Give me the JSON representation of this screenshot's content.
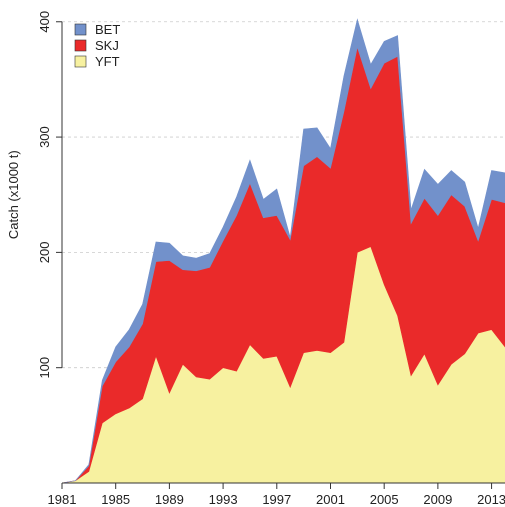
{
  "chart_data": {
    "type": "area",
    "stacked": true,
    "title": "",
    "xlabel": "",
    "ylabel": "Catch (x1000 t)",
    "xlim": [
      1981,
      2014
    ],
    "ylim": [
      0,
      400
    ],
    "x_ticks": [
      "1981",
      "1985",
      "1989",
      "1993",
      "1997",
      "2001",
      "2005",
      "2009",
      "2013"
    ],
    "y_ticks": [
      "100",
      "200",
      "300",
      "400"
    ],
    "grid": "horizontal dashed",
    "legend_position": "top-left",
    "x": [
      1981,
      1982,
      1983,
      1984,
      1985,
      1986,
      1987,
      1988,
      1989,
      1990,
      1991,
      1992,
      1993,
      1994,
      1995,
      1996,
      1997,
      1998,
      1999,
      2000,
      2001,
      2002,
      2003,
      2004,
      2005,
      2006,
      2007,
      2008,
      2009,
      2010,
      2011,
      2012,
      2013,
      2014
    ],
    "series": [
      {
        "name": "YFT",
        "color": "#f7f1a0",
        "values": [
          0,
          2,
          10,
          52,
          60,
          65,
          73,
          110,
          78,
          103,
          92,
          90,
          100,
          97,
          120,
          108,
          110,
          83,
          113,
          115,
          113,
          122,
          200,
          205,
          172,
          145,
          93,
          112,
          85,
          103,
          112,
          130,
          133,
          118
        ]
      },
      {
        "name": "SKJ",
        "color": "#ea2a2a",
        "values": [
          0,
          0,
          5,
          32,
          45,
          53,
          65,
          82,
          115,
          82,
          92,
          97,
          110,
          135,
          140,
          122,
          122,
          128,
          162,
          168,
          160,
          200,
          178,
          137,
          192,
          225,
          132,
          135,
          147,
          147,
          128,
          80,
          113,
          125
        ]
      },
      {
        "name": "BET",
        "color": "#7291cb",
        "values": [
          0,
          0,
          1,
          5,
          13,
          15,
          17,
          17,
          15,
          12,
          11,
          12,
          12,
          16,
          20,
          16,
          23,
          2,
          32,
          25,
          17,
          31,
          24,
          21,
          19,
          18,
          12,
          25,
          27,
          21,
          21,
          11,
          25,
          26
        ]
      }
    ]
  }
}
